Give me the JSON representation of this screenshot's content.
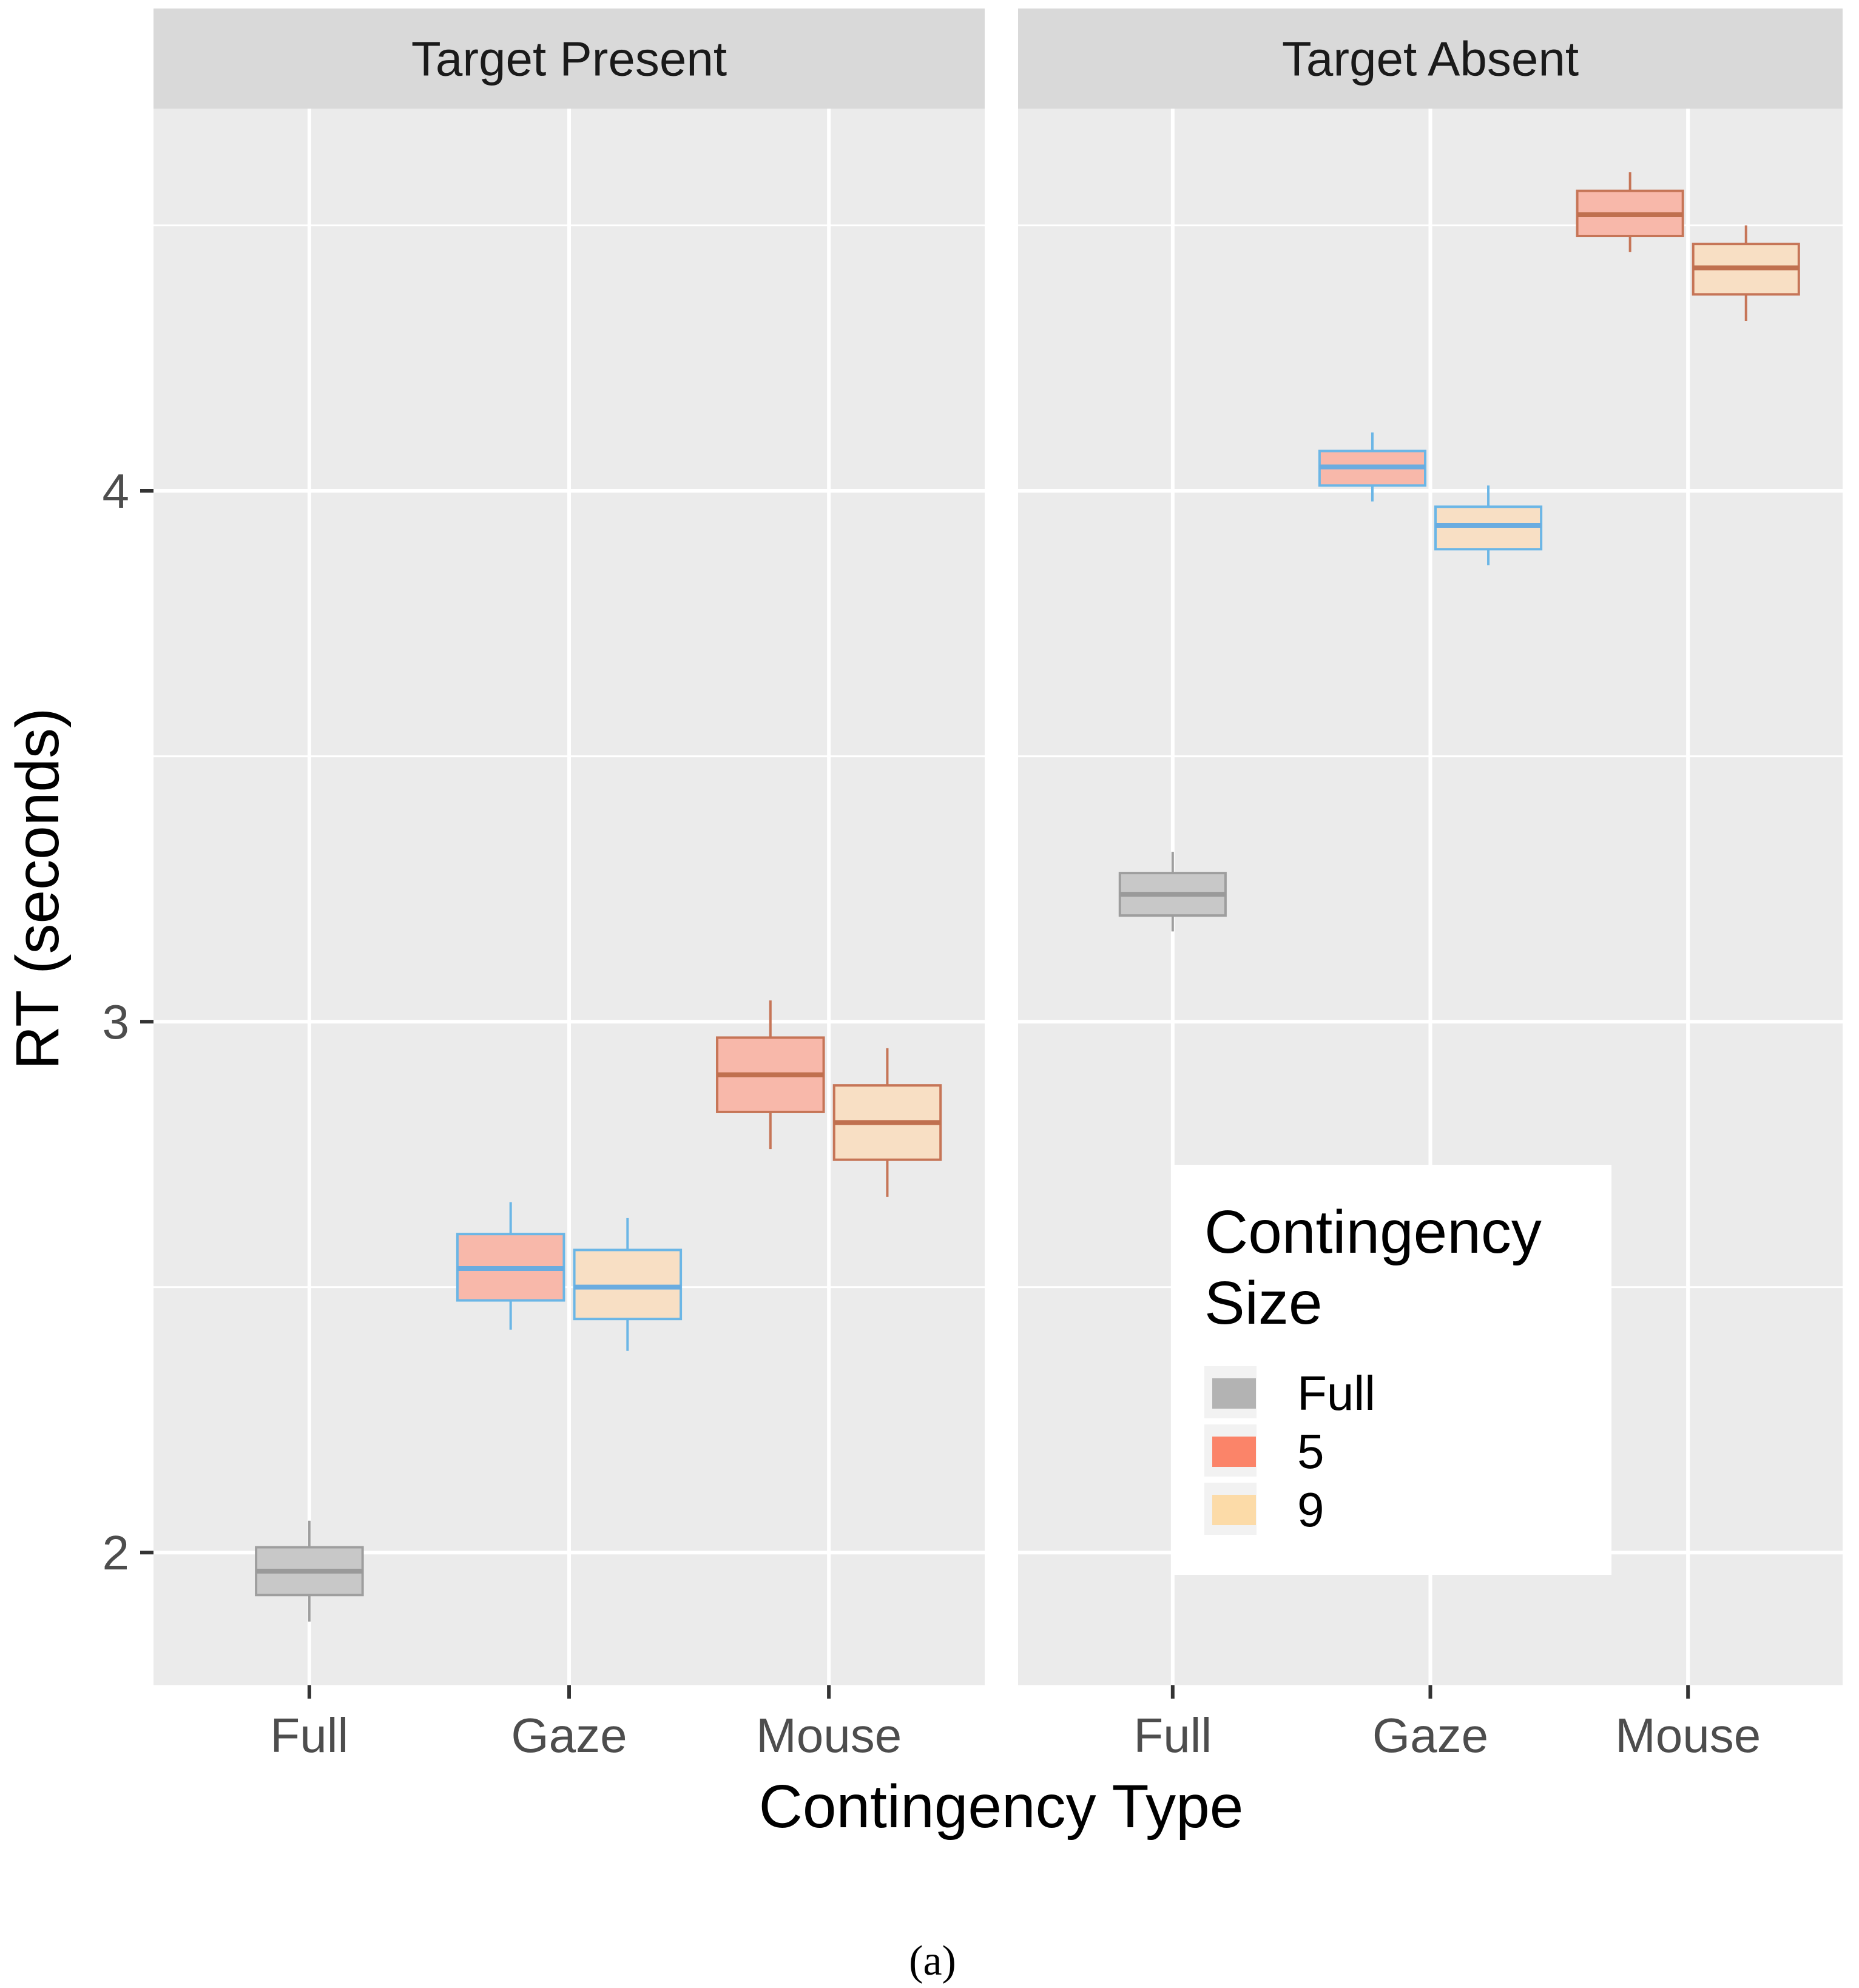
{
  "chart_data": {
    "type": "boxplot",
    "ylabel": "RT (seconds)",
    "xlabel": "Contingency Type",
    "ylim": [
      1.75,
      4.72
    ],
    "y_ticks": [
      2,
      3,
      4
    ],
    "y_minor_ticks": [
      2.5,
      3.5,
      4.5
    ],
    "categories": [
      "Full",
      "Gaze",
      "Mouse"
    ],
    "facets": [
      {
        "label": "Target Present",
        "boxes": [
          {
            "category": "Full",
            "size": "Full",
            "lower_whisker": 1.87,
            "q1": 1.92,
            "median": 1.965,
            "q3": 2.01,
            "upper_whisker": 2.06
          },
          {
            "category": "Gaze",
            "size": "5",
            "lower_whisker": 2.42,
            "q1": 2.475,
            "median": 2.535,
            "q3": 2.6,
            "upper_whisker": 2.66
          },
          {
            "category": "Gaze",
            "size": "9",
            "lower_whisker": 2.38,
            "q1": 2.44,
            "median": 2.5,
            "q3": 2.57,
            "upper_whisker": 2.63
          },
          {
            "category": "Mouse",
            "size": "5",
            "lower_whisker": 2.76,
            "q1": 2.83,
            "median": 2.9,
            "q3": 2.97,
            "upper_whisker": 3.04
          },
          {
            "category": "Mouse",
            "size": "9",
            "lower_whisker": 2.67,
            "q1": 2.74,
            "median": 2.81,
            "q3": 2.88,
            "upper_whisker": 2.95
          }
        ]
      },
      {
        "label": "Target Absent",
        "boxes": [
          {
            "category": "Full",
            "size": "Full",
            "lower_whisker": 3.17,
            "q1": 3.2,
            "median": 3.24,
            "q3": 3.28,
            "upper_whisker": 3.32
          },
          {
            "category": "Gaze",
            "size": "5",
            "lower_whisker": 3.98,
            "q1": 4.01,
            "median": 4.045,
            "q3": 4.075,
            "upper_whisker": 4.11
          },
          {
            "category": "Gaze",
            "size": "9",
            "lower_whisker": 3.86,
            "q1": 3.89,
            "median": 3.935,
            "q3": 3.97,
            "upper_whisker": 4.01
          },
          {
            "category": "Mouse",
            "size": "5",
            "lower_whisker": 4.45,
            "q1": 4.48,
            "median": 4.52,
            "q3": 4.565,
            "upper_whisker": 4.6
          },
          {
            "category": "Mouse",
            "size": "9",
            "lower_whisker": 4.32,
            "q1": 4.37,
            "median": 4.42,
            "q3": 4.465,
            "upper_whisker": 4.5
          }
        ]
      }
    ],
    "legend": {
      "title_line1": "Contingency",
      "title_line2": "Size",
      "position": "inside-bottom-right",
      "entries": [
        {
          "label": "Full",
          "fill": "#b3b3b3"
        },
        {
          "label": "5",
          "fill": "#fb8469"
        },
        {
          "label": "9",
          "fill": "#fcdba8"
        }
      ]
    },
    "colors": {
      "panel_bg": "#ebebeb",
      "strip_bg": "#d9d9d9",
      "grid": "#ffffff",
      "fill_full": "#c8c8c8",
      "fill_5": "#f8b8aa",
      "fill_9": "#f8dfc4",
      "stroke_full": "#9e9e9e",
      "stroke_gaze": "#6bb6e6",
      "stroke_mouse": "#c67557",
      "median_full": "#9a9a9a",
      "median_gaze": "#6aace0",
      "median_mouse": "#c0704f"
    }
  },
  "caption": "(a)"
}
